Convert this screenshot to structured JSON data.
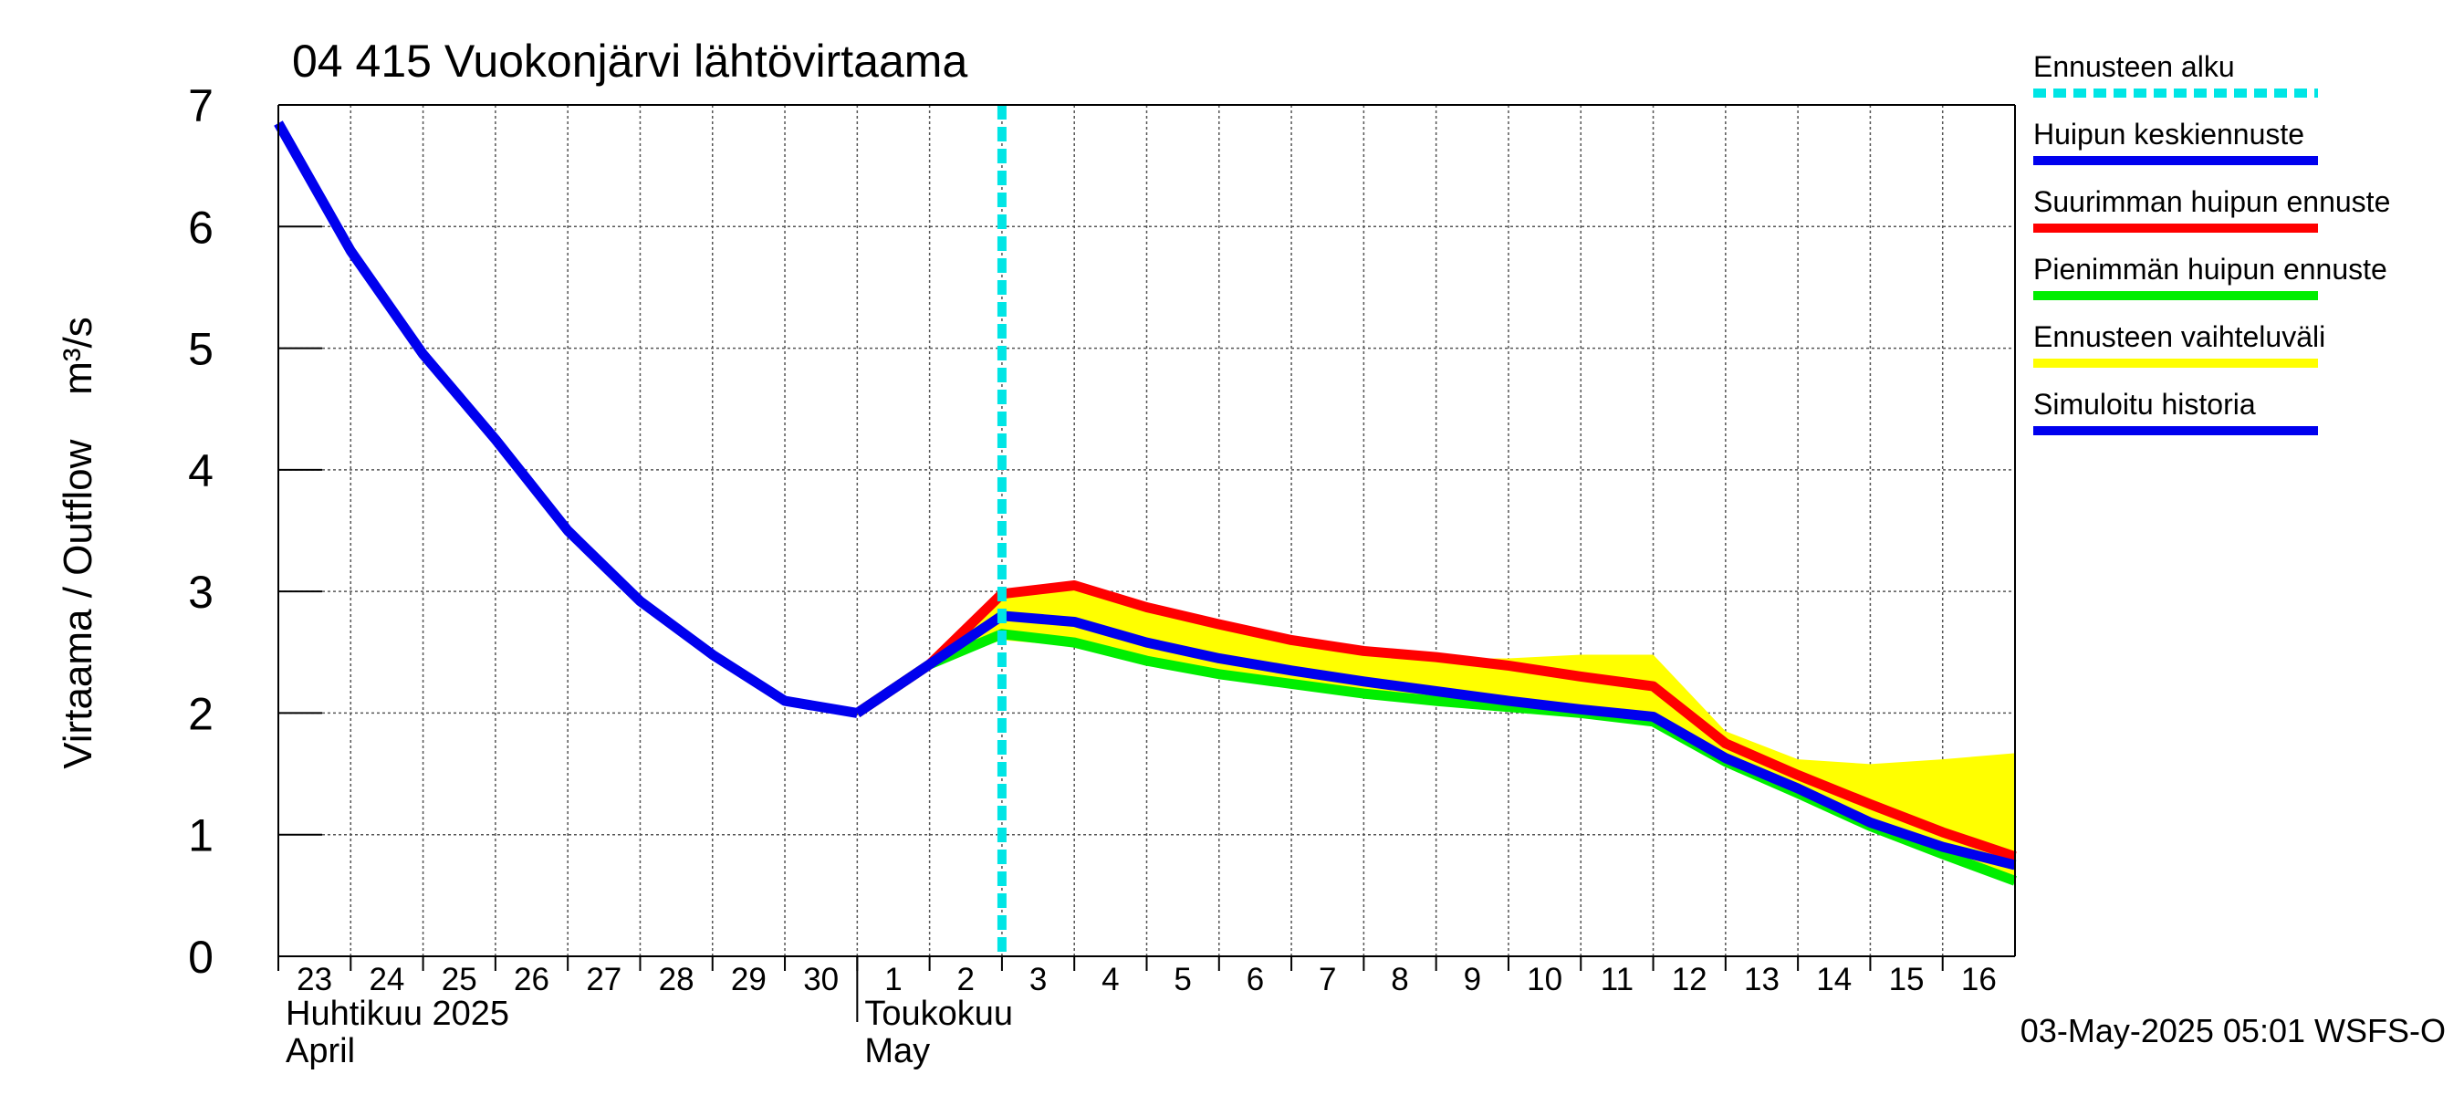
{
  "chart_data": {
    "type": "line",
    "title": "04 415 Vuokonjärvi lähtövirtaama",
    "ylabel": "Virtaama / Outflow    m³/s",
    "ylim": [
      0,
      7
    ],
    "yticks": [
      "0",
      "1",
      "2",
      "3",
      "4",
      "5",
      "6",
      "7"
    ],
    "xlim": [
      0,
      24
    ],
    "day_labels": [
      "23",
      "24",
      "25",
      "26",
      "27",
      "28",
      "29",
      "30",
      "1",
      "2",
      "3",
      "4",
      "5",
      "6",
      "7",
      "8",
      "9",
      "10",
      "11",
      "12",
      "13",
      "14",
      "15",
      "16"
    ],
    "months": [
      {
        "fi": "Huhtikuu  2025",
        "en": "April",
        "start": 0
      },
      {
        "fi": "Toukokuu",
        "en": "May",
        "start": 8
      }
    ],
    "forecast_start_x": 10,
    "grid": true,
    "legend_position": "right",
    "series": [
      {
        "name": "Ennusteen vaihteluväli",
        "type": "band",
        "color": "#ffff00",
        "x": [
          8,
          9,
          10,
          11,
          12,
          13,
          14,
          15,
          16,
          17,
          18,
          19,
          20,
          21,
          22,
          23,
          24
        ],
        "lower": [
          2.0,
          2.4,
          2.6,
          2.55,
          2.4,
          2.3,
          2.22,
          2.15,
          2.08,
          2.03,
          1.98,
          1.9,
          1.6,
          1.35,
          1.05,
          0.82,
          0.6
        ],
        "upper": [
          2.0,
          2.4,
          2.98,
          3.02,
          2.85,
          2.72,
          2.6,
          2.5,
          2.45,
          2.45,
          2.48,
          2.48,
          1.85,
          1.62,
          1.58,
          1.62,
          1.67
        ]
      },
      {
        "name": "Pienimmän huipun ennuste",
        "color": "#00ee00",
        "x": [
          8,
          9,
          10,
          11,
          12,
          13,
          14,
          15,
          16,
          17,
          18,
          19,
          20,
          21,
          22,
          23,
          24
        ],
        "y": [
          2.0,
          2.4,
          2.65,
          2.58,
          2.43,
          2.32,
          2.24,
          2.16,
          2.1,
          2.05,
          2.0,
          1.93,
          1.6,
          1.34,
          1.07,
          0.84,
          0.62
        ]
      },
      {
        "name": "Suurimman huipun ennuste",
        "color": "#ff0000",
        "x": [
          8,
          9,
          10,
          11,
          12,
          13,
          14,
          15,
          16,
          17,
          18,
          19,
          20,
          21,
          22,
          23,
          24
        ],
        "y": [
          2.0,
          2.4,
          2.98,
          3.05,
          2.87,
          2.73,
          2.6,
          2.51,
          2.46,
          2.39,
          2.3,
          2.22,
          1.75,
          1.49,
          1.25,
          1.02,
          0.82
        ]
      },
      {
        "name": "Huipun keskiennuste",
        "color": "#0000ee",
        "x": [
          8,
          9,
          10,
          11,
          12,
          13,
          14,
          15,
          16,
          17,
          18,
          19,
          20,
          21,
          22,
          23,
          24
        ],
        "y": [
          2.0,
          2.4,
          2.8,
          2.75,
          2.58,
          2.45,
          2.35,
          2.26,
          2.18,
          2.1,
          2.03,
          1.97,
          1.63,
          1.38,
          1.1,
          0.9,
          0.75
        ]
      },
      {
        "name": "Simuloitu historia",
        "color": "#0000ee",
        "x": [
          0,
          1,
          2,
          3,
          4,
          5,
          6,
          7,
          8
        ],
        "y": [
          6.85,
          5.8,
          4.95,
          4.25,
          3.5,
          2.92,
          2.48,
          2.1,
          2.0
        ]
      }
    ],
    "legend": [
      {
        "label": "Ennusteen alku",
        "color": "#00e5e5",
        "style": "dashed"
      },
      {
        "label": "Huipun keskiennuste",
        "color": "#0000ee",
        "style": "solid"
      },
      {
        "label": "Suurimman huipun ennuste",
        "color": "#ff0000",
        "style": "solid"
      },
      {
        "label": "Pienimmän huipun ennuste",
        "color": "#00ee00",
        "style": "solid"
      },
      {
        "label": "Ennusteen vaihteluväli",
        "color": "#ffff00",
        "style": "solid"
      },
      {
        "label": "Simuloitu historia",
        "color": "#0000ee",
        "style": "solid"
      }
    ],
    "footer": "03-May-2025 05:01 WSFS-O"
  }
}
